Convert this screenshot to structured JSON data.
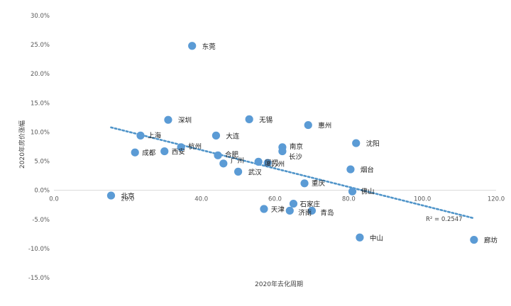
{
  "chart_data": {
    "type": "scatter",
    "title": "",
    "xlabel": "2020年去化周期",
    "ylabel": "2020年房价涨幅",
    "xlim": [
      0,
      120
    ],
    "ylim": [
      -15,
      30
    ],
    "x_ticks": [
      "0.0",
      "20.0",
      "40.0",
      "60.0",
      "80.0",
      "100.0",
      "120.0"
    ],
    "y_ticks": [
      "-15.0%",
      "-10.0%",
      "-5.0%",
      "0.0%",
      "5.0%",
      "10.0%",
      "15.0%",
      "20.0%",
      "25.0%",
      "30.0%"
    ],
    "grid": false,
    "legend": "none",
    "trendline": {
      "type": "linear",
      "from": [
        15.5,
        10.8
      ],
      "to": [
        114,
        -4.8
      ],
      "r2_label": "R² = 0.2547"
    },
    "colors": {
      "point": "#5B9BD5",
      "trend": "#4F94C9",
      "axis": "#D9D9D9"
    },
    "points": [
      {
        "city": "东莞",
        "x": 37.5,
        "y": 24.8
      },
      {
        "city": "深圳",
        "x": 31,
        "y": 12.1
      },
      {
        "city": "无锡",
        "x": 53,
        "y": 12.2
      },
      {
        "city": "惠州",
        "x": 69,
        "y": 11.2
      },
      {
        "city": "上海",
        "x": 23.5,
        "y": 9.4
      },
      {
        "city": "大连",
        "x": 44,
        "y": 9.4
      },
      {
        "city": "沈阳",
        "x": 82,
        "y": 8.1
      },
      {
        "city": "南京",
        "x": 62,
        "y": 7.4
      },
      {
        "city": "长沙",
        "x": 62,
        "y": 6.7
      },
      {
        "city": "成都",
        "x": 22,
        "y": 6.5
      },
      {
        "city": "西安",
        "x": 30,
        "y": 6.7
      },
      {
        "city": "杭州",
        "x": 34.5,
        "y": 7.4
      },
      {
        "city": "合肥",
        "x": 44.5,
        "y": 6.0
      },
      {
        "city": "广州",
        "x": 46,
        "y": 4.6
      },
      {
        "city": "厦门",
        "x": 55.5,
        "y": 4.9
      },
      {
        "city": "苏州",
        "x": 58,
        "y": 4.7
      },
      {
        "city": "武汉",
        "x": 50,
        "y": 3.2
      },
      {
        "city": "烟台",
        "x": 80.5,
        "y": 3.6
      },
      {
        "city": "重庆",
        "x": 68,
        "y": 1.2
      },
      {
        "city": "佛山",
        "x": 81,
        "y": -0.2
      },
      {
        "city": "北京",
        "x": 15.5,
        "y": -0.9
      },
      {
        "city": "石家庄",
        "x": 65,
        "y": -2.3
      },
      {
        "city": "天津",
        "x": 57,
        "y": -3.2
      },
      {
        "city": "济南",
        "x": 64,
        "y": -3.5
      },
      {
        "city": "青岛",
        "x": 70,
        "y": -3.5
      },
      {
        "city": "中山",
        "x": 83,
        "y": -8.1
      },
      {
        "city": "廊坊",
        "x": 114,
        "y": -8.5
      }
    ]
  }
}
